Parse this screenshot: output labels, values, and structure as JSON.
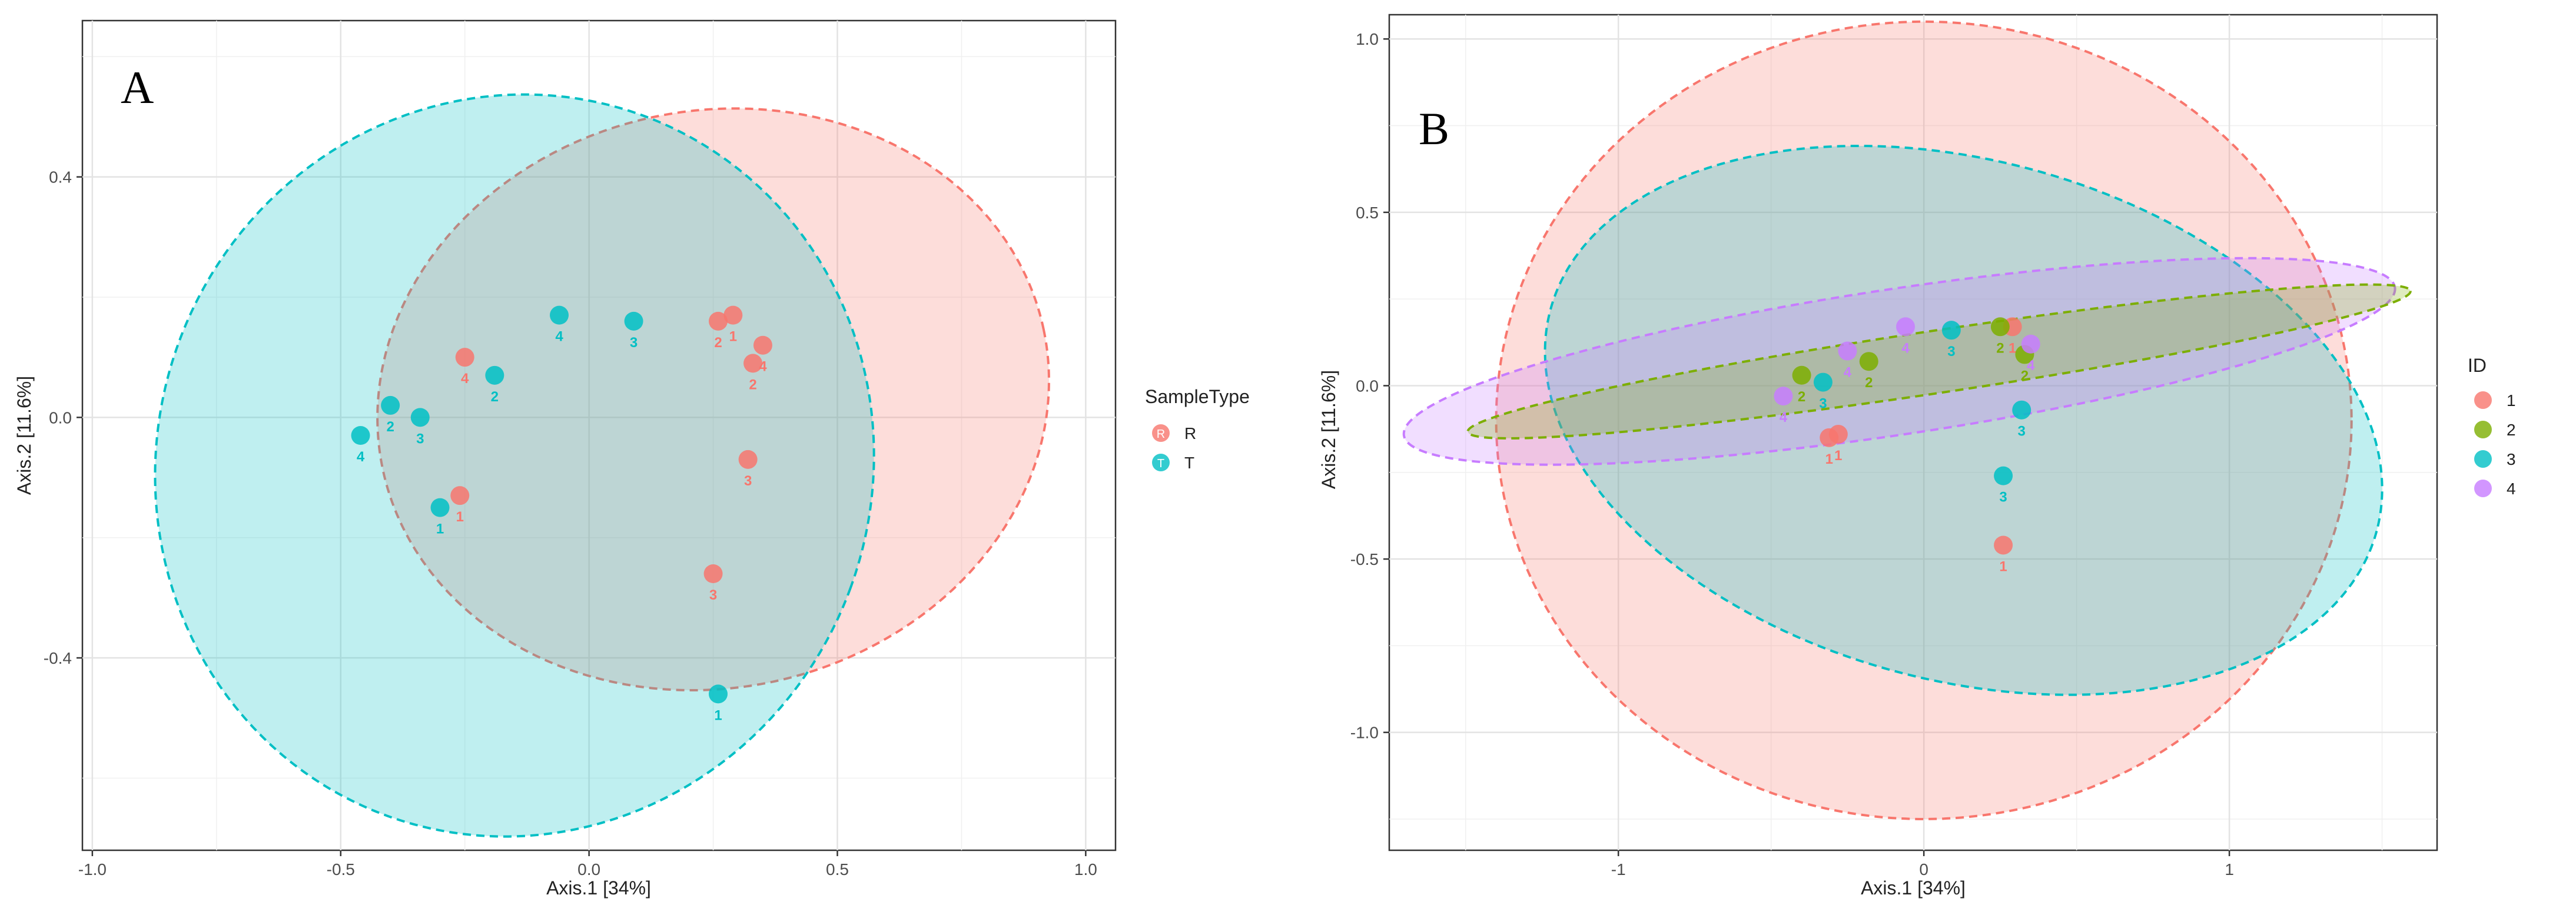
{
  "chart_data": [
    {
      "type": "scatter",
      "panel_label": "A",
      "xlabel": "Axis.1   [34%]",
      "ylabel": "Axis.2   [11.6%]",
      "xlim": [
        -1.02,
        1.06
      ],
      "ylim": [
        -0.72,
        0.66
      ],
      "xticks": [
        -1.0,
        -0.5,
        0.0,
        0.5,
        1.0
      ],
      "xtick_labels": [
        "-1.0",
        "-0.5",
        "0.0",
        "0.5",
        "1.0"
      ],
      "yticks": [
        -0.4,
        0.0,
        0.4
      ],
      "ytick_labels": [
        "-0.4",
        "0.0",
        "0.4"
      ],
      "grid": true,
      "legend": {
        "title": "SampleType",
        "position": "right",
        "entries": [
          {
            "label": "R",
            "key": "R"
          },
          {
            "label": "T",
            "key": "T"
          }
        ]
      },
      "colors": {
        "R": "#F8766D",
        "T": "#00BFC4"
      },
      "ellipses": [
        {
          "group": "R",
          "cx": 0.25,
          "cy": 0.03,
          "rx": 0.68,
          "ry": 0.48,
          "angle": 12
        },
        {
          "group": "T",
          "cx": -0.15,
          "cy": -0.08,
          "rx": 0.72,
          "ry": 0.62,
          "angle": -20
        }
      ],
      "points": [
        {
          "x": -0.25,
          "y": 0.1,
          "label": "4",
          "group": "R"
        },
        {
          "x": 0.26,
          "y": 0.16,
          "label": "2",
          "group": "R"
        },
        {
          "x": 0.29,
          "y": 0.17,
          "label": "1",
          "group": "R"
        },
        {
          "x": 0.35,
          "y": 0.12,
          "label": "4",
          "group": "R"
        },
        {
          "x": 0.33,
          "y": 0.09,
          "label": "2",
          "group": "R"
        },
        {
          "x": 0.32,
          "y": -0.07,
          "label": "3",
          "group": "R"
        },
        {
          "x": -0.26,
          "y": -0.13,
          "label": "1",
          "group": "R"
        },
        {
          "x": 0.25,
          "y": -0.26,
          "label": "3",
          "group": "R"
        },
        {
          "x": -0.06,
          "y": 0.17,
          "label": "4",
          "group": "T"
        },
        {
          "x": 0.09,
          "y": 0.16,
          "label": "3",
          "group": "T"
        },
        {
          "x": -0.19,
          "y": 0.07,
          "label": "2",
          "group": "T"
        },
        {
          "x": -0.4,
          "y": 0.02,
          "label": "2",
          "group": "T"
        },
        {
          "x": -0.34,
          "y": 0.0,
          "label": "3",
          "group": "T"
        },
        {
          "x": -0.46,
          "y": -0.03,
          "label": "4",
          "group": "T"
        },
        {
          "x": -0.3,
          "y": -0.15,
          "label": "1",
          "group": "T"
        },
        {
          "x": 0.26,
          "y": -0.46,
          "label": "1",
          "group": "T"
        }
      ]
    },
    {
      "type": "scatter",
      "panel_label": "B",
      "xlabel": "Axis.1   [34%]",
      "ylabel": "Axis.2   [11.6%]",
      "xlim": [
        -1.75,
        1.68
      ],
      "ylim": [
        -1.34,
        1.07
      ],
      "xticks": [
        -1,
        0,
        1
      ],
      "xtick_labels": [
        "-1",
        "0",
        "1"
      ],
      "yticks": [
        -1.0,
        -0.5,
        0.0,
        0.5,
        1.0
      ],
      "ytick_labels": [
        "-1.0",
        "-0.5",
        "0.0",
        "0.5",
        "1.0"
      ],
      "grid": true,
      "legend": {
        "title": "ID",
        "position": "right",
        "entries": [
          {
            "label": "1",
            "key": "1"
          },
          {
            "label": "2",
            "key": "2"
          },
          {
            "label": "3",
            "key": "3"
          },
          {
            "label": "4",
            "key": "4"
          }
        ]
      },
      "colors": {
        "1": "#F8766D",
        "2": "#7CAE00",
        "3": "#00BFC4",
        "4": "#C77CFF"
      },
      "ellipses": [
        {
          "group": "1",
          "cx": 0.0,
          "cy": -0.1,
          "rx": 1.4,
          "ry": 1.15,
          "angle": 0
        },
        {
          "group": "3",
          "cx": 0.13,
          "cy": -0.1,
          "rx": 1.4,
          "ry": 0.75,
          "angle": -15
        },
        {
          "group": "4",
          "cx": -0.08,
          "cy": 0.07,
          "rx": 1.64,
          "ry": 0.21,
          "angle": 8.5
        },
        {
          "group": "2",
          "cx": 0.05,
          "cy": 0.07,
          "rx": 1.56,
          "ry": 0.09,
          "angle": 8.5
        }
      ],
      "points": [
        {
          "x": -0.28,
          "y": -0.14,
          "label": "1",
          "group": "1"
        },
        {
          "x": -0.31,
          "y": -0.15,
          "label": "1",
          "group": "1"
        },
        {
          "x": 0.29,
          "y": 0.17,
          "label": "1",
          "group": "1"
        },
        {
          "x": 0.26,
          "y": -0.46,
          "label": "1",
          "group": "1"
        },
        {
          "x": -0.4,
          "y": 0.03,
          "label": "2",
          "group": "2"
        },
        {
          "x": -0.18,
          "y": 0.07,
          "label": "2",
          "group": "2"
        },
        {
          "x": 0.25,
          "y": 0.17,
          "label": "2",
          "group": "2"
        },
        {
          "x": 0.33,
          "y": 0.09,
          "label": "2",
          "group": "2"
        },
        {
          "x": -0.33,
          "y": 0.01,
          "label": "3",
          "group": "3"
        },
        {
          "x": 0.09,
          "y": 0.16,
          "label": "3",
          "group": "3"
        },
        {
          "x": 0.32,
          "y": -0.07,
          "label": "3",
          "group": "3"
        },
        {
          "x": 0.26,
          "y": -0.26,
          "label": "3",
          "group": "3"
        },
        {
          "x": -0.46,
          "y": -0.03,
          "label": "4",
          "group": "4"
        },
        {
          "x": -0.25,
          "y": 0.1,
          "label": "4",
          "group": "4"
        },
        {
          "x": -0.06,
          "y": 0.17,
          "label": "4",
          "group": "4"
        },
        {
          "x": 0.35,
          "y": 0.12,
          "label": "4",
          "group": "4"
        }
      ]
    }
  ]
}
